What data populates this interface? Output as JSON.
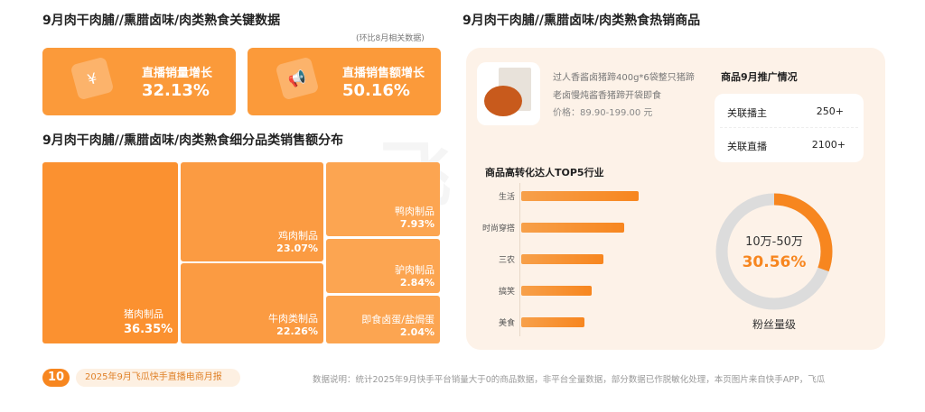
{
  "left": {
    "kpi_title": "9月肉干肉脯//熏腊卤味/肉类熟食关键数据",
    "kpi_note": "(环比8月相关数据)",
    "kpis": [
      {
        "label": "直播销量增长",
        "value": "32.13%",
        "icon": "yuan-icon"
      },
      {
        "label": "直播销售额增长",
        "value": "50.16%",
        "icon": "megaphone-icon"
      }
    ],
    "treemap_title": "9月肉干肉脯//熏腊卤味/肉类熟食细分品类销售额分布",
    "treemap": [
      {
        "name": "猪肉制品",
        "value": "36.35%"
      },
      {
        "name": "鸡肉制品",
        "value": "23.07%"
      },
      {
        "name": "牛肉类制品",
        "value": "22.26%"
      },
      {
        "name": "鸭肉制品",
        "value": "7.93%"
      },
      {
        "name": "驴肉制品",
        "value": "2.84%"
      },
      {
        "name": "即食卤蛋/盐焗蛋",
        "value": "2.04%"
      }
    ]
  },
  "right": {
    "title": "9月肉干肉脯//熏腊卤味/肉类熟食热销商品",
    "product": {
      "name": "过人香酱卤猪蹄400g*6袋整只猪蹄老卤慢炖酱香猪蹄开袋即食",
      "price": "价格：89.90-199.00 元"
    },
    "promo": {
      "title": "商品9月推广情况",
      "rows": [
        {
          "label": "关联播主",
          "value": "250+"
        },
        {
          "label": "关联直播",
          "value": "2100+"
        }
      ]
    },
    "top5": {
      "title": "商品高转化达人TOP5行业",
      "categories": [
        "生活",
        "时尚穿搭",
        "三农",
        "搞笑",
        "美食"
      ],
      "values": [
        100,
        88,
        70,
        60,
        54
      ]
    },
    "donut": {
      "label": "10万-50万",
      "value": "30.56%",
      "fraction": 0.3056,
      "caption": "粉丝量级",
      "accent": "#f7861f",
      "track": "#dcdcdc"
    }
  },
  "footer": {
    "page": "10",
    "report": "2025年9月飞瓜快手直播电商月报",
    "note": "数据说明：统计2025年9月快手平台销量大于0的商品数据，非平台全量数据，部分数据已作脱敏化处理，本页图片来自快手APP，飞瓜"
  },
  "watermark": "飞瓜 快手版"
}
